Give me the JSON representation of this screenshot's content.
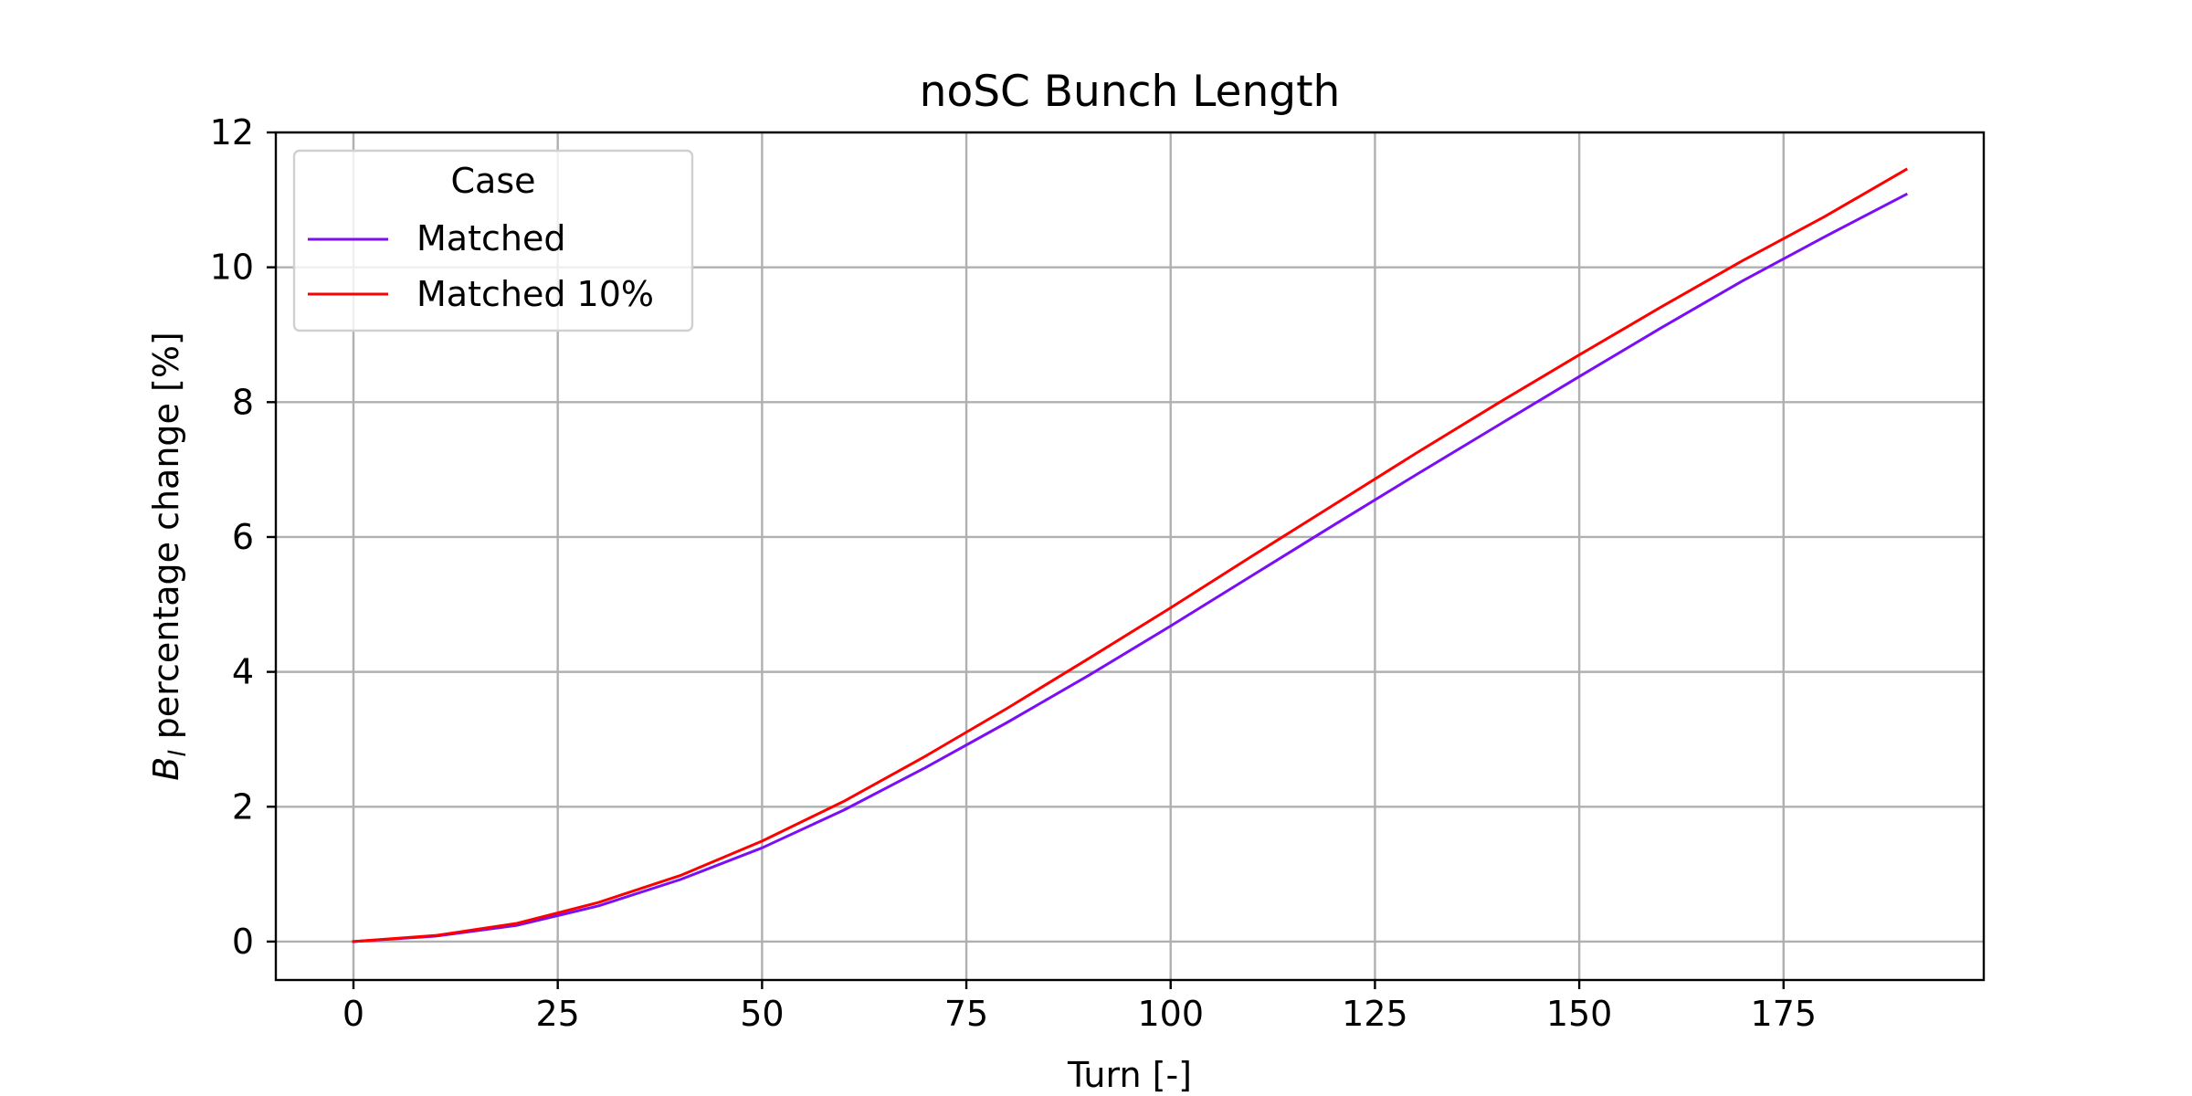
{
  "chart_data": {
    "type": "line",
    "title": "noSC Bunch Length",
    "xlabel": "Turn [-]",
    "ylabel_symbol": "B",
    "ylabel_subscript": "l",
    "ylabel_rest": " percentage change [%]",
    "xlim": [
      -9.5,
      199.5
    ],
    "ylim": [
      -0.57,
      12.0
    ],
    "grid": true,
    "legend": {
      "title": "Case",
      "placement": "upper-left"
    },
    "x_ticks": [
      "0",
      "25",
      "50",
      "75",
      "100",
      "125",
      "150",
      "175"
    ],
    "x_tick_values": [
      0,
      25,
      50,
      75,
      100,
      125,
      150,
      175
    ],
    "y_ticks": [
      "0",
      "2",
      "4",
      "6",
      "8",
      "10",
      "12"
    ],
    "y_tick_values": [
      0,
      2,
      4,
      6,
      8,
      10,
      12
    ],
    "x": [
      0,
      10,
      20,
      30,
      40,
      50,
      60,
      70,
      80,
      90,
      100,
      110,
      120,
      130,
      140,
      150,
      160,
      170,
      180,
      190
    ],
    "series": [
      {
        "name": "Matched",
        "color": "#7a0ef5",
        "values": [
          0.0,
          0.08,
          0.24,
          0.53,
          0.92,
          1.39,
          1.95,
          2.58,
          3.25,
          3.95,
          4.68,
          5.43,
          6.18,
          6.92,
          7.65,
          8.38,
          9.1,
          9.8,
          10.45,
          11.08
        ]
      },
      {
        "name": "Matched 10%",
        "color": "#ff0000",
        "values": [
          0.0,
          0.09,
          0.27,
          0.58,
          0.98,
          1.49,
          2.08,
          2.75,
          3.46,
          4.2,
          4.95,
          5.72,
          6.48,
          7.24,
          7.98,
          8.7,
          9.41,
          10.1,
          10.75,
          11.45
        ]
      }
    ]
  }
}
